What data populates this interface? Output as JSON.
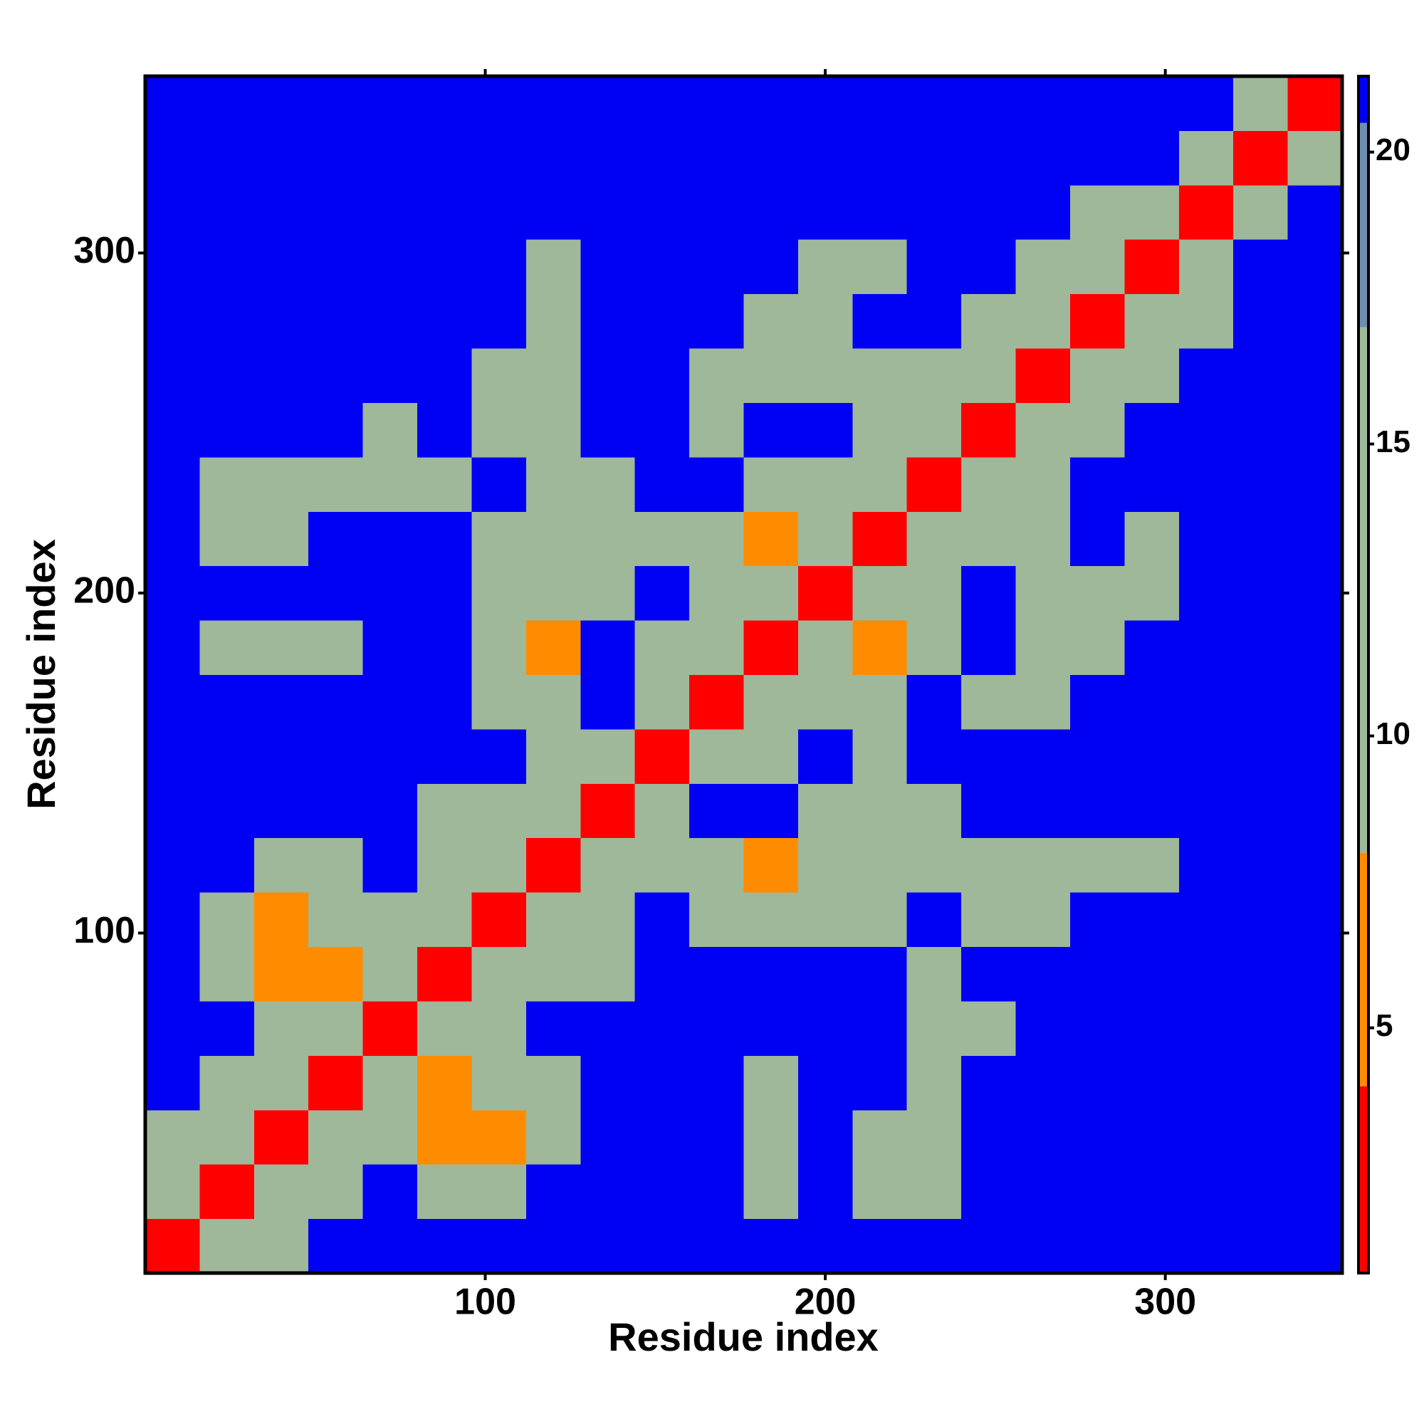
{
  "chart_data": {
    "type": "heatmap",
    "xlabel": "Residue index",
    "ylabel": "Residue index",
    "xlim": [
      0,
      352
    ],
    "ylim": [
      0,
      352
    ],
    "xticks": [
      100,
      200,
      300
    ],
    "yticks": [
      100,
      200,
      300
    ],
    "bins": [
      0,
      16,
      32,
      48,
      64,
      80,
      96,
      112,
      128,
      144,
      160,
      176,
      192,
      208,
      224,
      240,
      256,
      272,
      288,
      304,
      320,
      336,
      352
    ],
    "values": [
      [
        3,
        12,
        14,
        21,
        21,
        21,
        21,
        21,
        21,
        21,
        21,
        21,
        21,
        21,
        21,
        21,
        21,
        21,
        21,
        21,
        21,
        21
      ],
      [
        12,
        3,
        12,
        11,
        21,
        12,
        12,
        21,
        21,
        21,
        21,
        12,
        21,
        11,
        12,
        21,
        21,
        21,
        21,
        21,
        21,
        21
      ],
      [
        14,
        12,
        3,
        12,
        11,
        6,
        6,
        11,
        21,
        21,
        21,
        12,
        21,
        11,
        11,
        21,
        21,
        21,
        21,
        21,
        21,
        21
      ],
      [
        21,
        11,
        12,
        3,
        12,
        6,
        11,
        11,
        21,
        21,
        21,
        14,
        21,
        21,
        12,
        21,
        21,
        21,
        21,
        21,
        21,
        21
      ],
      [
        21,
        21,
        11,
        12,
        3,
        12,
        12,
        21,
        21,
        21,
        21,
        21,
        21,
        21,
        12,
        14,
        21,
        21,
        21,
        21,
        21,
        21
      ],
      [
        21,
        12,
        6,
        6,
        12,
        3,
        12,
        11,
        12,
        21,
        21,
        21,
        21,
        21,
        12,
        21,
        21,
        21,
        21,
        21,
        21,
        21
      ],
      [
        21,
        12,
        6,
        11,
        12,
        12,
        3,
        12,
        11,
        21,
        12,
        12,
        13,
        13,
        21,
        13,
        15,
        21,
        21,
        21,
        21,
        21
      ],
      [
        21,
        21,
        11,
        11,
        21,
        11,
        12,
        3,
        12,
        13,
        12,
        6,
        11,
        11,
        12,
        12,
        14,
        11,
        11,
        21,
        21,
        21
      ],
      [
        21,
        21,
        21,
        21,
        21,
        12,
        11,
        12,
        3,
        12,
        21,
        21,
        11,
        11,
        11,
        21,
        21,
        21,
        21,
        21,
        21,
        21
      ],
      [
        21,
        21,
        21,
        21,
        21,
        21,
        21,
        13,
        12,
        3,
        12,
        12,
        21,
        12,
        21,
        21,
        21,
        21,
        21,
        21,
        21,
        21
      ],
      [
        21,
        21,
        21,
        21,
        21,
        21,
        12,
        12,
        21,
        12,
        3,
        12,
        12,
        11,
        21,
        12,
        13,
        21,
        21,
        21,
        21,
        21
      ],
      [
        21,
        12,
        12,
        14,
        21,
        21,
        12,
        6,
        21,
        12,
        12,
        3,
        12,
        6,
        11,
        21,
        12,
        14,
        21,
        21,
        21,
        21
      ],
      [
        21,
        21,
        21,
        21,
        21,
        21,
        13,
        11,
        11,
        21,
        12,
        12,
        3,
        12,
        11,
        21,
        11,
        12,
        11,
        21,
        21,
        21
      ],
      [
        21,
        11,
        11,
        21,
        21,
        21,
        13,
        11,
        11,
        12,
        11,
        6,
        12,
        3,
        12,
        11,
        11,
        21,
        11,
        21,
        21,
        21
      ],
      [
        21,
        12,
        11,
        12,
        12,
        12,
        21,
        12,
        11,
        21,
        21,
        11,
        11,
        12,
        3,
        12,
        12,
        21,
        21,
        21,
        21,
        21
      ],
      [
        21,
        21,
        21,
        21,
        14,
        21,
        13,
        12,
        21,
        21,
        12,
        21,
        21,
        11,
        12,
        3,
        12,
        12,
        21,
        21,
        21,
        21
      ],
      [
        21,
        21,
        21,
        21,
        21,
        21,
        15,
        14,
        21,
        21,
        13,
        12,
        11,
        11,
        12,
        12,
        3,
        12,
        11,
        21,
        21,
        21
      ],
      [
        21,
        21,
        21,
        21,
        21,
        21,
        21,
        11,
        21,
        21,
        21,
        14,
        12,
        21,
        21,
        12,
        12,
        3,
        12,
        12,
        21,
        21
      ],
      [
        21,
        21,
        21,
        21,
        21,
        21,
        21,
        11,
        21,
        21,
        21,
        21,
        11,
        11,
        21,
        21,
        11,
        12,
        3,
        12,
        21,
        21
      ],
      [
        21,
        21,
        21,
        21,
        21,
        21,
        21,
        21,
        21,
        21,
        21,
        21,
        21,
        21,
        21,
        21,
        21,
        12,
        12,
        3,
        12,
        21
      ],
      [
        21,
        21,
        21,
        21,
        21,
        21,
        21,
        21,
        21,
        21,
        21,
        21,
        21,
        21,
        21,
        21,
        21,
        21,
        21,
        12,
        3,
        12
      ],
      [
        21,
        21,
        21,
        21,
        21,
        21,
        21,
        21,
        21,
        21,
        21,
        21,
        21,
        21,
        21,
        21,
        21,
        21,
        21,
        21,
        12,
        3
      ]
    ],
    "colorbar": {
      "lim": [
        0.8,
        21.3
      ],
      "ticks": [
        5,
        10,
        15,
        20
      ],
      "levels": [
        4,
        8,
        17,
        20.5
      ],
      "colors": [
        "#ff0000",
        "#ff8c00",
        "#9fb899",
        "#6f8fb0",
        "#0000f5"
      ]
    }
  }
}
